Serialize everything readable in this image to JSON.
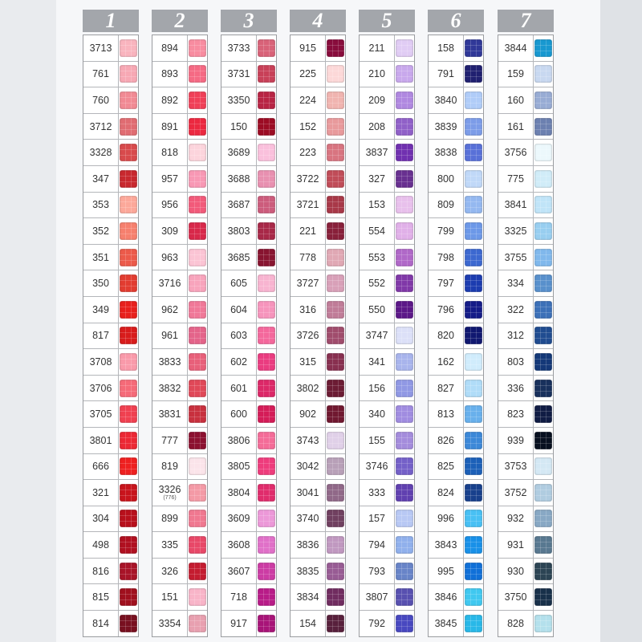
{
  "columns": [
    {
      "label": "1",
      "items": [
        {
          "code": "3713",
          "color": "#f9b4be"
        },
        {
          "code": "761",
          "color": "#f7a8b4"
        },
        {
          "code": "760",
          "color": "#f18a94"
        },
        {
          "code": "3712",
          "color": "#e06c72"
        },
        {
          "code": "3328",
          "color": "#d84a4c"
        },
        {
          "code": "347",
          "color": "#c8282e"
        },
        {
          "code": "353",
          "color": "#fca89a"
        },
        {
          "code": "352",
          "color": "#f6806e"
        },
        {
          "code": "351",
          "color": "#ec5a4a"
        },
        {
          "code": "350",
          "color": "#e23c30"
        },
        {
          "code": "349",
          "color": "#e8201c"
        },
        {
          "code": "817",
          "color": "#d81c1c"
        },
        {
          "code": "3708",
          "color": "#f99aaa"
        },
        {
          "code": "3706",
          "color": "#f56a78"
        },
        {
          "code": "3705",
          "color": "#f04050"
        },
        {
          "code": "3801",
          "color": "#ec2834"
        },
        {
          "code": "666",
          "color": "#ee2020"
        },
        {
          "code": "321",
          "color": "#c8141c"
        },
        {
          "code": "304",
          "color": "#b8101c"
        },
        {
          "code": "498",
          "color": "#b01020"
        },
        {
          "code": "816",
          "color": "#a81428"
        },
        {
          "code": "815",
          "color": "#a0101e"
        },
        {
          "code": "814",
          "color": "#781020"
        }
      ]
    },
    {
      "label": "2",
      "items": [
        {
          "code": "894",
          "color": "#f88ca0"
        },
        {
          "code": "893",
          "color": "#f56a84"
        },
        {
          "code": "892",
          "color": "#f04058"
        },
        {
          "code": "891",
          "color": "#ec2840"
        },
        {
          "code": "818",
          "color": "#fcd4dc"
        },
        {
          "code": "957",
          "color": "#f898b4"
        },
        {
          "code": "956",
          "color": "#f25a7a"
        },
        {
          "code": "309",
          "color": "#d8284a"
        },
        {
          "code": "963",
          "color": "#fbc4d4"
        },
        {
          "code": "3716",
          "color": "#f8a4bc"
        },
        {
          "code": "962",
          "color": "#f07898"
        },
        {
          "code": "961",
          "color": "#e4648a"
        },
        {
          "code": "3833",
          "color": "#e8607a"
        },
        {
          "code": "3832",
          "color": "#e04858"
        },
        {
          "code": "3831",
          "color": "#c8303e"
        },
        {
          "code": "777",
          "color": "#8c1030"
        },
        {
          "code": "819",
          "color": "#fbe4ea"
        },
        {
          "code": "3326",
          "sub": "(776)",
          "color": "#f49aa6"
        },
        {
          "code": "899",
          "color": "#f07890"
        },
        {
          "code": "335",
          "color": "#e84868"
        },
        {
          "code": "326",
          "color": "#c41c30"
        },
        {
          "code": "151",
          "color": "#f8b4c8"
        },
        {
          "code": "3354",
          "color": "#e8a0b0"
        }
      ]
    },
    {
      "label": "3",
      "items": [
        {
          "code": "3733",
          "color": "#d86278"
        },
        {
          "code": "3731",
          "color": "#c84058"
        },
        {
          "code": "3350",
          "color": "#b82444"
        },
        {
          "code": "150",
          "color": "#9c0c24"
        },
        {
          "code": "3689",
          "color": "#fac0dc"
        },
        {
          "code": "3688",
          "color": "#e890b0"
        },
        {
          "code": "3687",
          "color": "#cc5c7c"
        },
        {
          "code": "3803",
          "color": "#a82848"
        },
        {
          "code": "3685",
          "color": "#881430"
        },
        {
          "code": "605",
          "color": "#f8b4d0"
        },
        {
          "code": "604",
          "color": "#f694bc"
        },
        {
          "code": "603",
          "color": "#f4689c"
        },
        {
          "code": "602",
          "color": "#ea3c80"
        },
        {
          "code": "601",
          "color": "#dc2868"
        },
        {
          "code": "600",
          "color": "#d41c58"
        },
        {
          "code": "3806",
          "color": "#f46c98"
        },
        {
          "code": "3805",
          "color": "#ee3c7c"
        },
        {
          "code": "3804",
          "color": "#e02c6c"
        },
        {
          "code": "3609",
          "color": "#ec98d8"
        },
        {
          "code": "3608",
          "color": "#e070c8"
        },
        {
          "code": "3607",
          "color": "#cc3ca4"
        },
        {
          "code": "718",
          "color": "#b81c88"
        },
        {
          "code": "917",
          "color": "#a81478"
        }
      ]
    },
    {
      "label": "4",
      "items": [
        {
          "code": "915",
          "color": "#880c3c"
        },
        {
          "code": "225",
          "color": "#fcd8d8"
        },
        {
          "code": "224",
          "color": "#f0b4b0"
        },
        {
          "code": "152",
          "color": "#e89a9c"
        },
        {
          "code": "223",
          "color": "#d87480"
        },
        {
          "code": "3722",
          "color": "#c04c58"
        },
        {
          "code": "3721",
          "color": "#a83848"
        },
        {
          "code": "221",
          "color": "#88203a"
        },
        {
          "code": "778",
          "color": "#e0a8b4"
        },
        {
          "code": "3727",
          "color": "#d8a0b8"
        },
        {
          "code": "316",
          "color": "#c07c98"
        },
        {
          "code": "3726",
          "color": "#a04c6c"
        },
        {
          "code": "315",
          "color": "#883050"
        },
        {
          "code": "3802",
          "color": "#6c1c34"
        },
        {
          "code": "902",
          "color": "#701830"
        },
        {
          "code": "3743",
          "color": "#e0d0e8"
        },
        {
          "code": "3042",
          "color": "#b8a0b8"
        },
        {
          "code": "3041",
          "color": "#906888"
        },
        {
          "code": "3740",
          "color": "#704060"
        },
        {
          "code": "3836",
          "color": "#c098c0"
        },
        {
          "code": "3835",
          "color": "#985c94"
        },
        {
          "code": "3834",
          "color": "#702c60"
        },
        {
          "code": "154",
          "color": "#58203c"
        }
      ]
    },
    {
      "label": "5",
      "items": [
        {
          "code": "211",
          "color": "#e0ccf4"
        },
        {
          "code": "210",
          "color": "#c8a8ec"
        },
        {
          "code": "209",
          "color": "#b088e0"
        },
        {
          "code": "208",
          "color": "#9060c8"
        },
        {
          "code": "3837",
          "color": "#7030b0"
        },
        {
          "code": "327",
          "color": "#683090"
        },
        {
          "code": "153",
          "color": "#e8c0ec"
        },
        {
          "code": "554",
          "color": "#e0b0e8"
        },
        {
          "code": "553",
          "color": "#b068c8"
        },
        {
          "code": "552",
          "color": "#8038a8"
        },
        {
          "code": "550",
          "color": "#5c1888"
        },
        {
          "code": "3747",
          "color": "#dce0f8"
        },
        {
          "code": "341",
          "color": "#a8b4ec"
        },
        {
          "code": "156",
          "color": "#9098e4"
        },
        {
          "code": "340",
          "color": "#a08ce0"
        },
        {
          "code": "155",
          "color": "#a48cdc"
        },
        {
          "code": "3746",
          "color": "#7460c8"
        },
        {
          "code": "333",
          "color": "#6040b0"
        },
        {
          "code": "157",
          "color": "#b8c8f4"
        },
        {
          "code": "794",
          "color": "#90b0ec"
        },
        {
          "code": "793",
          "color": "#6884c8"
        },
        {
          "code": "3807",
          "color": "#5850b0"
        },
        {
          "code": "792",
          "color": "#4848c0"
        }
      ]
    },
    {
      "label": "6",
      "items": [
        {
          "code": "158",
          "color": "#303898"
        },
        {
          "code": "791",
          "color": "#202070"
        },
        {
          "code": "3840",
          "color": "#b0ccf8"
        },
        {
          "code": "3839",
          "color": "#7c9ce8"
        },
        {
          "code": "3838",
          "color": "#5870d8"
        },
        {
          "code": "800",
          "color": "#c0d8f8"
        },
        {
          "code": "809",
          "color": "#94b8f0"
        },
        {
          "code": "799",
          "color": "#6c98e8"
        },
        {
          "code": "798",
          "color": "#3c68d0"
        },
        {
          "code": "797",
          "color": "#1c3cb0"
        },
        {
          "code": "796",
          "color": "#141c88"
        },
        {
          "code": "820",
          "color": "#101870"
        },
        {
          "code": "162",
          "color": "#d0ecfc"
        },
        {
          "code": "827",
          "color": "#b0dcf8"
        },
        {
          "code": "813",
          "color": "#68b0ec"
        },
        {
          "code": "826",
          "color": "#3c88d8"
        },
        {
          "code": "825",
          "color": "#1c60b8"
        },
        {
          "code": "824",
          "color": "#18408c"
        },
        {
          "code": "996",
          "color": "#48c0f4"
        },
        {
          "code": "3843",
          "color": "#1890e8"
        },
        {
          "code": "995",
          "color": "#1070d8"
        },
        {
          "code": "3846",
          "color": "#40c8f0"
        },
        {
          "code": "3845",
          "color": "#28b8e8"
        }
      ]
    },
    {
      "label": "7",
      "items": [
        {
          "code": "3844",
          "color": "#1898d0"
        },
        {
          "code": "159",
          "color": "#c8d8f0"
        },
        {
          "code": "160",
          "color": "#98acd4"
        },
        {
          "code": "161",
          "color": "#6c80b0"
        },
        {
          "code": "3756",
          "color": "#ecf8fc"
        },
        {
          "code": "775",
          "color": "#d0ecf8"
        },
        {
          "code": "3841",
          "color": "#c0e4f8"
        },
        {
          "code": "3325",
          "color": "#98cef0"
        },
        {
          "code": "3755",
          "color": "#80b8ec"
        },
        {
          "code": "334",
          "color": "#5890cc"
        },
        {
          "code": "322",
          "color": "#3c70b8"
        },
        {
          "code": "312",
          "color": "#204c90"
        },
        {
          "code": "803",
          "color": "#143878"
        },
        {
          "code": "336",
          "color": "#18305c"
        },
        {
          "code": "823",
          "color": "#101c44"
        },
        {
          "code": "939",
          "color": "#081020"
        },
        {
          "code": "3753",
          "color": "#d4e8f4"
        },
        {
          "code": "3752",
          "color": "#b0cce0"
        },
        {
          "code": "932",
          "color": "#88a8c4"
        },
        {
          "code": "931",
          "color": "#587890"
        },
        {
          "code": "930",
          "color": "#2c4454"
        },
        {
          "code": "3750",
          "color": "#18304a"
        },
        {
          "code": "828",
          "color": "#b4e0ec"
        }
      ]
    }
  ]
}
